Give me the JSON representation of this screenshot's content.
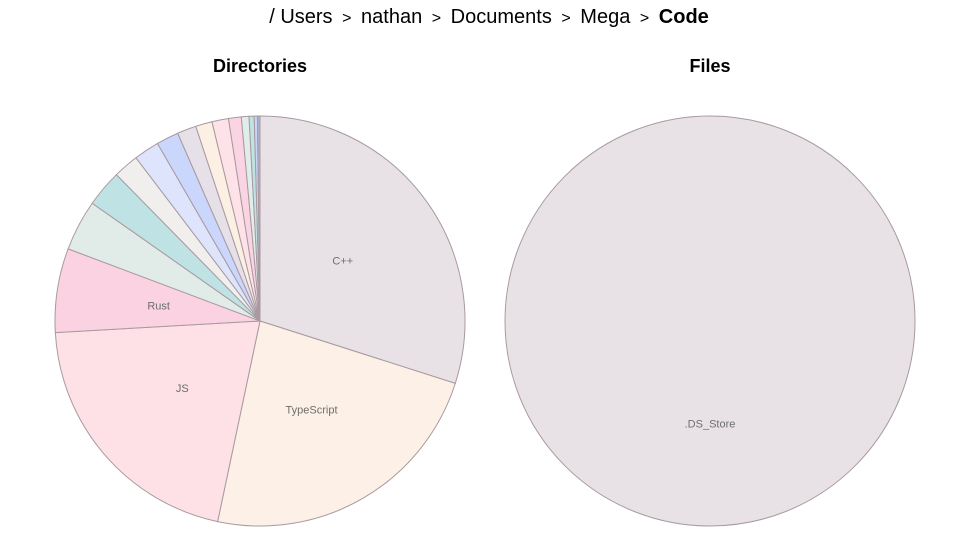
{
  "breadcrumb": {
    "root": "/",
    "items": [
      "Users",
      "nathan",
      "Documents",
      "Mega"
    ],
    "current": "Code",
    "separator": ">"
  },
  "chart_data": [
    {
      "type": "pie",
      "title": "Directories",
      "slices": [
        {
          "label": "C++",
          "value": 29.8,
          "color": "#e8e2e7"
        },
        {
          "label": "TypeScript",
          "value": 23.3,
          "color": "#fdf0e6"
        },
        {
          "label": "JS",
          "value": 20.7,
          "color": "#fde1e6"
        },
        {
          "label": "Rust",
          "value": 6.6,
          "color": "#fbd2e2"
        },
        {
          "label": "",
          "value": 4.0,
          "color": "#e1ebe8"
        },
        {
          "label": "",
          "value": 2.9,
          "color": "#bfe3e5"
        },
        {
          "label": "",
          "value": 2.0,
          "color": "#f0efee"
        },
        {
          "label": "",
          "value": 2.0,
          "color": "#dde4fb"
        },
        {
          "label": "",
          "value": 1.75,
          "color": "#cad6fb"
        },
        {
          "label": "",
          "value": 1.5,
          "color": "#e6e1e9"
        },
        {
          "label": "",
          "value": 1.3,
          "color": "#fcefe4"
        },
        {
          "label": "",
          "value": 1.3,
          "color": "#fde2e8"
        },
        {
          "label": "",
          "value": 1.0,
          "color": "#fbd4e4"
        },
        {
          "label": "",
          "value": 0.6,
          "color": "#e1ede8"
        },
        {
          "label": "",
          "value": 0.4,
          "color": "#bfe3e5"
        },
        {
          "label": "",
          "value": 0.25,
          "color": "#c9d6fb"
        },
        {
          "label": "",
          "value": 0.2,
          "color": "#a9b6c8"
        }
      ]
    },
    {
      "type": "pie",
      "title": "Files",
      "slices": [
        {
          "label": ".DS_Store",
          "value": 100,
          "color": "#e8e2e7"
        }
      ]
    }
  ]
}
